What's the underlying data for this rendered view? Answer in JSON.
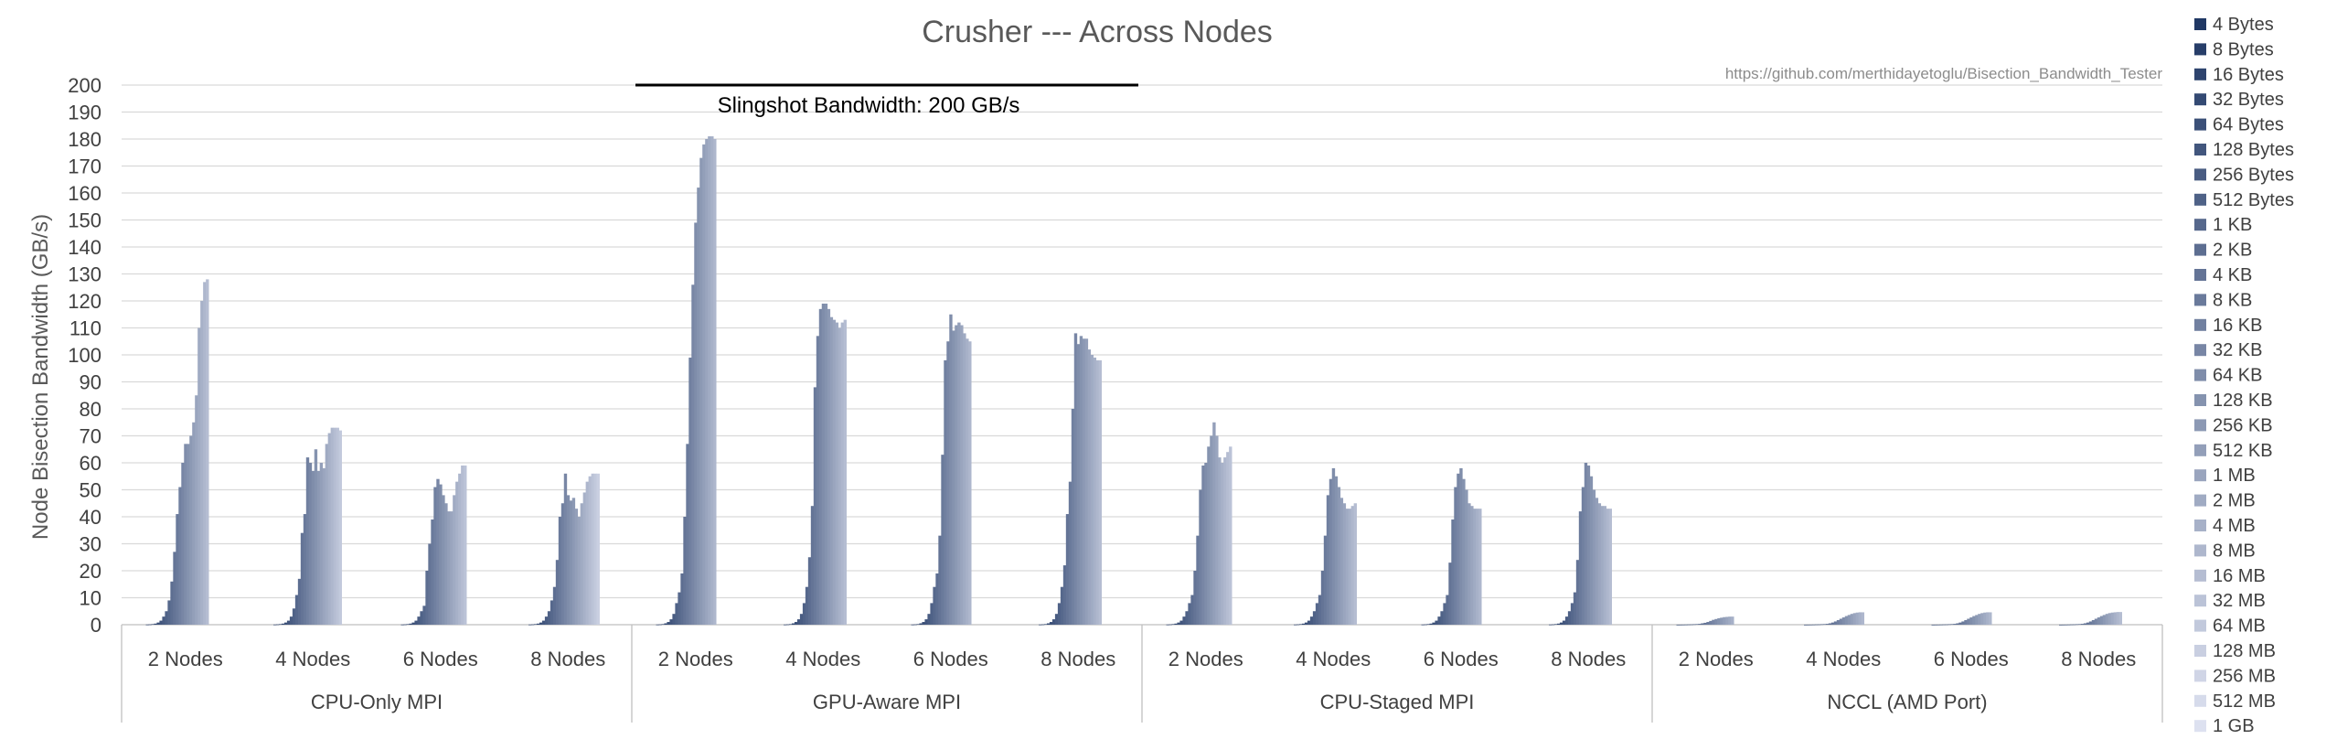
{
  "chart_data": {
    "type": "bar",
    "title": "Crusher --- Across Nodes",
    "source_note": "https://github.com/merthidayetoglu/Bisection_Bandwidth_Tester",
    "ylabel": "Node Bisection Bandwidth (GB/s)",
    "xlabel": "",
    "ylim": [
      0,
      200
    ],
    "yticks": [
      0,
      10,
      20,
      30,
      40,
      50,
      60,
      70,
      80,
      90,
      100,
      110,
      120,
      130,
      140,
      150,
      160,
      170,
      180,
      190,
      200
    ],
    "grid": true,
    "legend_position": "right",
    "annotation": {
      "text": "Slingshot Bandwidth: 200 GB/s",
      "value": 200,
      "spans_groups": [
        "GPU-Aware MPI"
      ]
    },
    "color_start": "#203864",
    "color_end": "#dde1f0",
    "sizes": [
      "4 Bytes",
      "8 Bytes",
      "16 Bytes",
      "32 Bytes",
      "64 Bytes",
      "128 Bytes",
      "256 Bytes",
      "512 Bytes",
      "1 KB",
      "2 KB",
      "4 KB",
      "8 KB",
      "16 KB",
      "32 KB",
      "64 KB",
      "128 KB",
      "256 KB",
      "512 KB",
      "1 MB",
      "2 MB",
      "4 MB",
      "8 MB",
      "16 MB",
      "32 MB",
      "64 MB",
      "128 MB",
      "256 MB",
      "512 MB",
      "1 GB"
    ],
    "groups": [
      {
        "name": "CPU-Only MPI",
        "subgroups": [
          {
            "label": "2 Nodes",
            "values": [
              0.05,
              0.1,
              0.2,
              0.4,
              0.8,
              1.5,
              3,
              5,
              9,
              16,
              27,
              41,
              51,
              60,
              67,
              67,
              70,
              75,
              85,
              110,
              120,
              127,
              128,
              0,
              0,
              0,
              0,
              0,
              0
            ]
          },
          {
            "label": "4 Nodes",
            "values": [
              0.05,
              0.1,
              0.2,
              0.4,
              0.8,
              1.5,
              3,
              6,
              11,
              17,
              34,
              41,
              62,
              60,
              57,
              65,
              57,
              60,
              58,
              67,
              71,
              73,
              73,
              73,
              72,
              0,
              0,
              0,
              0
            ]
          },
          {
            "label": "6 Nodes",
            "values": [
              0.05,
              0.1,
              0.2,
              0.4,
              0.8,
              1.5,
              3,
              5,
              7,
              20,
              30,
              39,
              51,
              54,
              52,
              48,
              45,
              42,
              42,
              48,
              53,
              56,
              59,
              59,
              0,
              0,
              0,
              0,
              0
            ]
          },
          {
            "label": "8 Nodes",
            "values": [
              0.05,
              0.1,
              0.2,
              0.4,
              0.8,
              1.5,
              3,
              5,
              9,
              14,
              24,
              40,
              45,
              56,
              48,
              46,
              47,
              43,
              40,
              45,
              49,
              53,
              55,
              56,
              56,
              56,
              0,
              0,
              0
            ]
          }
        ]
      },
      {
        "name": "GPU-Aware MPI",
        "subgroups": [
          {
            "label": "2 Nodes",
            "values": [
              0.05,
              0.1,
              0.2,
              0.5,
              1,
              2,
              4,
              8,
              12,
              19,
              40,
              67,
              99,
              126,
              149,
              162,
              173,
              178,
              180,
              181,
              181,
              180,
              0,
              0,
              0,
              0,
              0,
              0,
              0
            ]
          },
          {
            "label": "4 Nodes",
            "values": [
              0.05,
              0.1,
              0.2,
              0.5,
              1,
              2,
              4,
              8,
              14,
              25,
              44,
              88,
              107,
              117,
              119,
              119,
              117,
              114,
              113,
              112,
              110,
              112,
              113,
              0,
              0,
              0,
              0,
              0,
              0
            ]
          },
          {
            "label": "6 Nodes",
            "values": [
              0.05,
              0.1,
              0.2,
              0.5,
              1,
              2,
              4,
              8,
              14,
              19,
              33,
              63,
              98,
              105,
              115,
              109,
              111,
              112,
              111,
              108,
              106,
              105,
              0,
              0,
              0,
              0,
              0,
              0,
              0
            ]
          },
          {
            "label": "8 Nodes",
            "values": [
              0.05,
              0.1,
              0.2,
              0.5,
              1,
              2,
              4,
              8,
              14,
              22,
              41,
              53,
              80,
              108,
              104,
              107,
              106,
              106,
              102,
              100,
              99,
              98,
              98,
              0,
              0,
              0,
              0,
              0,
              0
            ]
          }
        ]
      },
      {
        "name": "CPU-Staged MPI",
        "subgroups": [
          {
            "label": "2 Nodes",
            "values": [
              0.05,
              0.1,
              0.2,
              0.4,
              0.8,
              1.5,
              3,
              5,
              8,
              11,
              20,
              33,
              50,
              59,
              60,
              66,
              70,
              75,
              70,
              62,
              60,
              62,
              64,
              66,
              0,
              0,
              0,
              0,
              0
            ]
          },
          {
            "label": "4 Nodes",
            "values": [
              0.05,
              0.1,
              0.2,
              0.4,
              0.8,
              1.5,
              3,
              5,
              8,
              11,
              20,
              33,
              48,
              54,
              58,
              55,
              51,
              47,
              45,
              43,
              43,
              44,
              45,
              0,
              0,
              0,
              0,
              0,
              0
            ]
          },
          {
            "label": "6 Nodes",
            "values": [
              0.05,
              0.1,
              0.2,
              0.4,
              0.8,
              1.5,
              3,
              5,
              8,
              11,
              23,
              39,
              51,
              56,
              58,
              54,
              50,
              45,
              44,
              43,
              43,
              43,
              0,
              0,
              0,
              0,
              0,
              0,
              0
            ]
          },
          {
            "label": "8 Nodes",
            "values": [
              0.05,
              0.1,
              0.2,
              0.4,
              0.8,
              1.5,
              3,
              5,
              8,
              12,
              24,
              42,
              51,
              60,
              59,
              55,
              50,
              47,
              45,
              44,
              44,
              43,
              43,
              0,
              0,
              0,
              0,
              0,
              0
            ]
          }
        ]
      },
      {
        "name": "NCCL (AMD Port)",
        "subgroups": [
          {
            "label": "2 Nodes",
            "values": [
              0.01,
              0.02,
              0.03,
              0.05,
              0.08,
              0.1,
              0.15,
              0.2,
              0.3,
              0.5,
              0.7,
              1,
              1.4,
              1.8,
              2.1,
              2.4,
              2.6,
              2.8,
              2.9,
              3,
              3,
              0,
              0,
              0,
              0,
              0,
              0,
              0,
              0
            ]
          },
          {
            "label": "4 Nodes",
            "values": [
              0.01,
              0.02,
              0.03,
              0.05,
              0.08,
              0.1,
              0.15,
              0.2,
              0.3,
              0.5,
              0.8,
              1.2,
              1.7,
              2.2,
              2.7,
              3.2,
              3.6,
              4,
              4.3,
              4.5,
              4.6,
              4.6,
              0,
              0,
              0,
              0,
              0,
              0,
              0
            ]
          },
          {
            "label": "6 Nodes",
            "values": [
              0.01,
              0.02,
              0.03,
              0.05,
              0.08,
              0.1,
              0.15,
              0.2,
              0.3,
              0.5,
              0.8,
              1.2,
              1.7,
              2.2,
              2.7,
              3.2,
              3.6,
              4,
              4.3,
              4.5,
              4.6,
              4.6,
              0,
              0,
              0,
              0,
              0,
              0,
              0
            ]
          },
          {
            "label": "8 Nodes",
            "values": [
              0.01,
              0.02,
              0.03,
              0.05,
              0.08,
              0.1,
              0.15,
              0.2,
              0.3,
              0.5,
              0.8,
              1.2,
              1.7,
              2.2,
              2.7,
              3.2,
              3.6,
              4,
              4.3,
              4.5,
              4.6,
              4.7,
              4.7,
              0,
              0,
              0,
              0,
              0,
              0
            ]
          }
        ]
      }
    ]
  }
}
